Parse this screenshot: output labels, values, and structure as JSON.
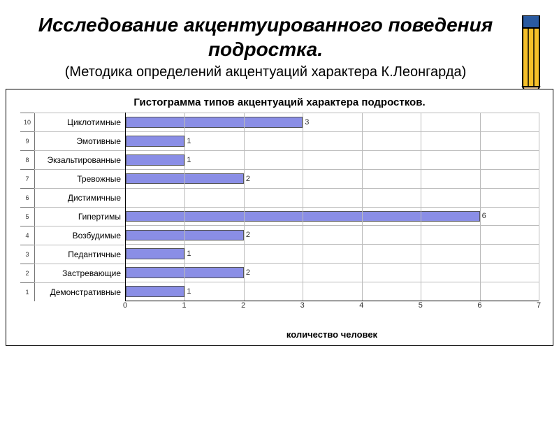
{
  "slide": {
    "title": "Исследование акцентуированного поведения подростка.",
    "subtitle": "(Методика определений акцентуаций характера К.Леонгарда)"
  },
  "chart": {
    "type": "bar-horizontal",
    "title": "Гистограмма типов акцентуаций характера подростков.",
    "x_label": "количество человек",
    "xlim": [
      0,
      7
    ],
    "xtick_step": 1,
    "background_color": "#ffffff",
    "grid_color": "#bbbbbb",
    "axis_color": "#000000",
    "bar_color": "#8a8ee6",
    "bar_border_color": "#555555",
    "value_label_color": "#333333",
    "title_fontsize": 15,
    "label_fontsize": 12,
    "tick_fontsize": 11,
    "rows": [
      {
        "group": "10",
        "category": "Циклотимные",
        "value": 3
      },
      {
        "group": "9",
        "category": "Эмотивные",
        "value": 1
      },
      {
        "group": "8",
        "category": "Экзальтированные",
        "value": 1
      },
      {
        "group": "7",
        "category": "Тревожные",
        "value": 2
      },
      {
        "group": "6",
        "category": "Дистимичные",
        "value": 0
      },
      {
        "group": "5",
        "category": "Гипертимы",
        "value": 6
      },
      {
        "group": "4",
        "category": "Возбудимые",
        "value": 2
      },
      {
        "group": "3",
        "category": "Педантичные",
        "value": 1
      },
      {
        "group": "2",
        "category": "Застревающие",
        "value": 2
      },
      {
        "group": "1",
        "category": "Демонстративные",
        "value": 1
      }
    ]
  },
  "pencil": {
    "body_color": "#f6c029",
    "band_color": "#2a5aa0",
    "tip_wood": "#e8c89a",
    "tip_lead": "#222222",
    "outline": "#000000"
  }
}
